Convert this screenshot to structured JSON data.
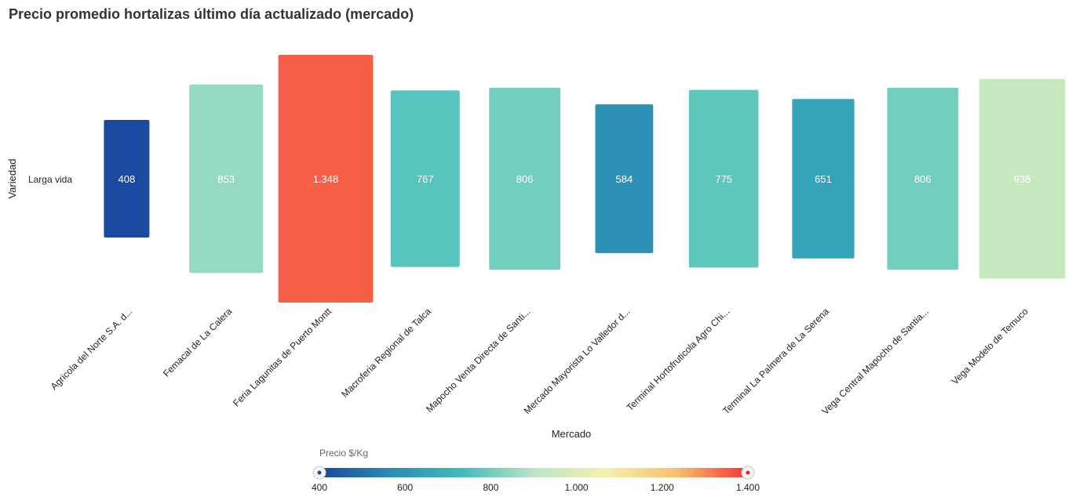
{
  "chart_data": {
    "type": "heatmap",
    "title": "Precio promedio hortalizas último día actualizado (mercado)",
    "xlabel": "Mercado",
    "ylabel": "Variedad",
    "rows": [
      "Larga vida"
    ],
    "categories": [
      "Agricola del Norte S.A. d...",
      "Femacal de La Calera",
      "Feria Lagunitas de Puerto Montt",
      "Macroferia Regional de Talca",
      "Mapocho Venta Directa de Santi...",
      "Mercado Mayorista Lo Valledor d...",
      "Terminal Hortofruticola Agro Chi...",
      "Terminal La Palmera de La Serena",
      "Vega Central Mapocho de Santia...",
      "Vega Modelo de Temuco"
    ],
    "values": [
      408,
      853,
      1348,
      767,
      806,
      584,
      775,
      651,
      806,
      938
    ],
    "value_labels": [
      "408",
      "853",
      "1.348",
      "767",
      "806",
      "584",
      "775",
      "651",
      "806",
      "938"
    ],
    "color_scale": {
      "title": "Precio $/Kg",
      "min": 400,
      "max": 1400,
      "ticks": [
        400,
        600,
        800,
        1000,
        1200,
        1400
      ],
      "tick_labels": [
        "400",
        "600",
        "800",
        "1.000",
        "1.200",
        "1.400"
      ],
      "colors": [
        "#1a47a0",
        "#2a8cb3",
        "#3fbcbc",
        "#b8e6c4",
        "#f5f0b0",
        "#fbbf6a",
        "#f5333a"
      ]
    }
  }
}
